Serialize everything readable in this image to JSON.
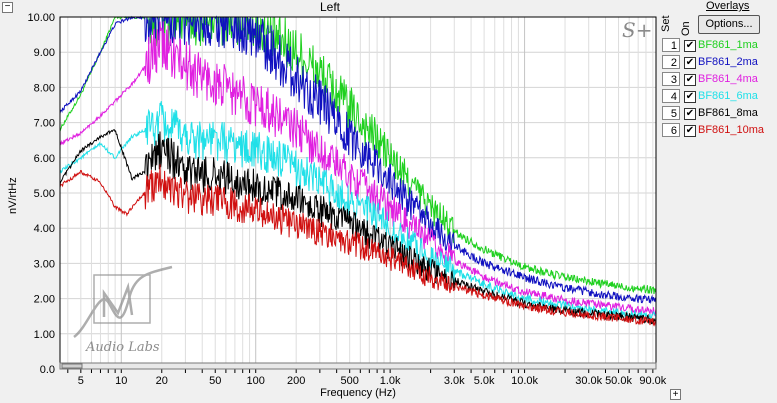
{
  "window": {
    "title": "Left",
    "minimize_symbol": "−",
    "expand_symbol": "+"
  },
  "watermark": {
    "corner_mark": "S+",
    "logo_text": "Audio Labs",
    "logo_icon": "signal-wave-logo-icon"
  },
  "overlays": {
    "title": "Overlays",
    "options_label": "Options...",
    "set_header": "Set",
    "on_header": "On",
    "items": [
      {
        "num": "1",
        "name": "BF861_1ma",
        "color": "#1fd01f",
        "on": true
      },
      {
        "num": "2",
        "name": "BF861_2ma",
        "color": "#1010c0",
        "on": true
      },
      {
        "num": "3",
        "name": "BF861_4ma",
        "color": "#e020e0",
        "on": true
      },
      {
        "num": "4",
        "name": "BF861_6ma",
        "color": "#20e0e8",
        "on": true
      },
      {
        "num": "5",
        "name": "BF861_8ma",
        "color": "#000000",
        "on": true
      },
      {
        "num": "6",
        "name": "BF861_10ma",
        "color": "#d01010",
        "on": true
      }
    ]
  },
  "chart_data": {
    "type": "line",
    "xlabel": "Frequency (Hz)",
    "ylabel": "nV/rtHz",
    "x_scale": "log",
    "xlim": [
      3.5,
      95000
    ],
    "ylim": [
      0,
      10
    ],
    "grid": true,
    "y_ticks": [
      "0.0",
      "1.00",
      "2.00",
      "3.00",
      "4.00",
      "5.00",
      "6.00",
      "7.00",
      "8.00",
      "9.00",
      "10.00"
    ],
    "x_ticks": [
      {
        "value": 5,
        "label": "5"
      },
      {
        "value": 10,
        "label": "10"
      },
      {
        "value": 20,
        "label": "20"
      },
      {
        "value": 50,
        "label": "50"
      },
      {
        "value": 100,
        "label": "100"
      },
      {
        "value": 200,
        "label": "200"
      },
      {
        "value": 500,
        "label": "500"
      },
      {
        "value": 1000,
        "label": "1.0k"
      },
      {
        "value": 3000,
        "label": "3.0k"
      },
      {
        "value": 5000,
        "label": "5.0k"
      },
      {
        "value": 10000,
        "label": "10.0k"
      },
      {
        "value": 30000,
        "label": "30.0k"
      },
      {
        "value": 50000,
        "label": "50.0k"
      },
      {
        "value": 90000,
        "label": "90.0k"
      }
    ],
    "series": [
      {
        "name": "BF861_1ma",
        "color": "#1fd01f",
        "x": [
          3.5,
          5,
          7,
          9,
          12,
          20,
          30,
          50,
          80,
          120,
          200,
          300,
          500,
          800,
          1200,
          2000,
          3000,
          5000,
          10000,
          20000,
          50000,
          90000
        ],
        "y": [
          6.8,
          7.8,
          9.0,
          10.0,
          10.0,
          10.0,
          10.0,
          10.0,
          10.0,
          9.6,
          9.0,
          8.4,
          7.4,
          6.5,
          5.6,
          4.6,
          3.9,
          3.4,
          2.9,
          2.6,
          2.35,
          2.25
        ]
      },
      {
        "name": "BF861_2ma",
        "color": "#1010c0",
        "x": [
          3.5,
          5,
          7,
          9,
          12,
          20,
          30,
          50,
          80,
          120,
          200,
          300,
          500,
          800,
          1200,
          2000,
          3000,
          5000,
          10000,
          20000,
          50000,
          90000
        ],
        "y": [
          7.3,
          7.9,
          9.0,
          9.8,
          10.0,
          10.0,
          10.0,
          10.0,
          9.8,
          9.2,
          8.3,
          7.6,
          6.6,
          5.8,
          5.0,
          4.1,
          3.5,
          3.0,
          2.6,
          2.3,
          2.05,
          1.95
        ]
      },
      {
        "name": "BF861_4ma",
        "color": "#e020e0",
        "x": [
          3.5,
          5,
          7,
          9,
          12,
          20,
          30,
          50,
          80,
          120,
          200,
          300,
          500,
          800,
          1200,
          2000,
          3000,
          5000,
          10000,
          20000,
          50000,
          90000
        ],
        "y": [
          6.4,
          6.7,
          7.2,
          7.6,
          8.1,
          9.2,
          8.6,
          8.1,
          7.7,
          7.4,
          6.8,
          6.2,
          5.5,
          4.9,
          4.3,
          3.6,
          3.1,
          2.6,
          2.2,
          1.95,
          1.75,
          1.65
        ]
      },
      {
        "name": "BF861_6ma",
        "color": "#20e0e8",
        "x": [
          3.5,
          5,
          7,
          9,
          12,
          20,
          30,
          50,
          80,
          120,
          200,
          300,
          500,
          800,
          1200,
          2000,
          3000,
          5000,
          10000,
          20000,
          50000,
          90000
        ],
        "y": [
          5.6,
          6.0,
          6.4,
          6.0,
          6.6,
          7.0,
          6.6,
          6.5,
          6.3,
          6.1,
          5.7,
          5.3,
          4.8,
          4.3,
          3.8,
          3.2,
          2.8,
          2.4,
          2.0,
          1.8,
          1.6,
          1.5
        ]
      },
      {
        "name": "BF861_8ma",
        "color": "#000000",
        "x": [
          3.5,
          5,
          7,
          9,
          12,
          15,
          20,
          30,
          50,
          80,
          120,
          200,
          300,
          500,
          800,
          1200,
          2000,
          3000,
          5000,
          10000,
          20000,
          50000,
          90000
        ],
        "y": [
          5.3,
          6.2,
          6.6,
          6.8,
          5.4,
          5.6,
          6.3,
          5.6,
          5.5,
          5.3,
          5.1,
          4.8,
          4.5,
          4.1,
          3.7,
          3.3,
          2.8,
          2.5,
          2.2,
          1.85,
          1.65,
          1.5,
          1.4
        ]
      },
      {
        "name": "BF861_10ma",
        "color": "#d01010",
        "x": [
          3.5,
          5,
          7,
          9,
          11,
          14,
          20,
          30,
          50,
          80,
          120,
          200,
          300,
          500,
          800,
          1200,
          2000,
          3000,
          5000,
          10000,
          20000,
          50000,
          90000
        ],
        "y": [
          5.2,
          5.6,
          5.3,
          4.6,
          4.4,
          4.9,
          5.4,
          4.9,
          4.8,
          4.6,
          4.4,
          4.1,
          3.9,
          3.6,
          3.3,
          3.0,
          2.6,
          2.35,
          2.1,
          1.8,
          1.6,
          1.45,
          1.35
        ]
      }
    ]
  }
}
